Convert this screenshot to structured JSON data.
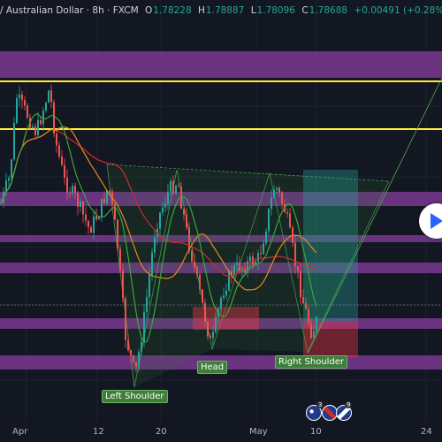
{
  "header": {
    "title": "/ Australian Dollar · 8h · FXCM",
    "o_label": "O",
    "o_value": "1.78228",
    "h_label": "H",
    "h_value": "1.78887",
    "l_label": "L",
    "l_value": "1.78096",
    "c_label": "C",
    "c_value": "1.78688",
    "change": "+0.00491 (+0.28%)"
  },
  "colors": {
    "background": "#131722",
    "up": "#26a69a",
    "down": "#ef5350",
    "zone": "#8a3fa5",
    "yellow_line": "#ffeb3b",
    "ma_short": "#3aa83a",
    "ma_mid": "#e8881e",
    "ma_long": "#d42a2a",
    "label_bg": "#3e7d3a"
  },
  "chart_data": {
    "type": "candlestick",
    "x_tick_labels": [
      "Apr",
      "12",
      "20",
      "May",
      "10",
      "24"
    ],
    "pattern_labels": {
      "left_shoulder": "Left Shoulder",
      "head": "Head",
      "right_shoulder": "Right Shoulder"
    },
    "event_counts": [
      "3",
      "9"
    ],
    "horizontal_levels": [
      {
        "kind": "yellow-line"
      },
      {
        "kind": "yellow-line"
      },
      {
        "kind": "zone"
      },
      {
        "kind": "zone"
      },
      {
        "kind": "zone"
      },
      {
        "kind": "zone"
      },
      {
        "kind": "zone"
      },
      {
        "kind": "zone"
      }
    ]
  },
  "icons": {
    "play": "play-icon",
    "au_flag": "australia-flag-icon",
    "uk_flag": "uk-flag-icon"
  }
}
